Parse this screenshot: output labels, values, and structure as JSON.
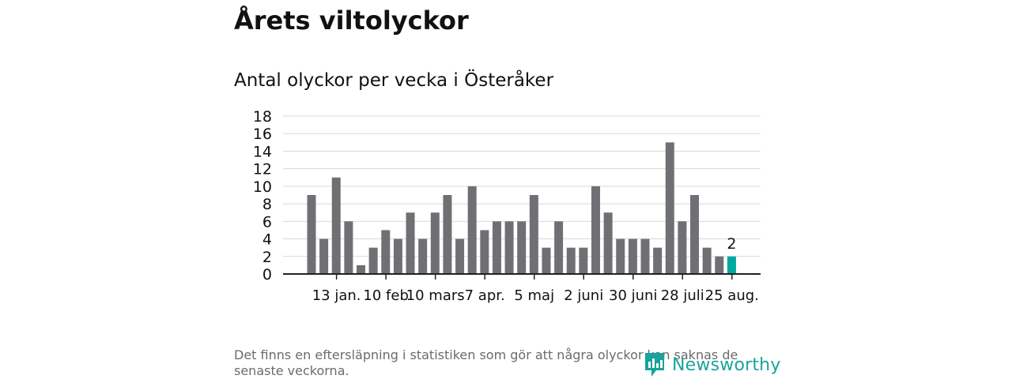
{
  "header": {
    "title": "Årets viltolyckor",
    "subtitle": "Antal olyckor per vecka i Österåker"
  },
  "footer": {
    "note": "Det finns en eftersläpning i statistiken som gör att några olyckor kan saknas de senaste veckorna.",
    "brand_name": "Newsworthy",
    "brand_color": "#1aa39a",
    "brand_icon": "newsworthy-logo-icon"
  },
  "chart_data": {
    "type": "bar",
    "title": "Antal olyckor per vecka i Österåker",
    "ylim": [
      0,
      18
    ],
    "yticks": [
      0,
      2,
      4,
      6,
      8,
      10,
      12,
      14,
      16,
      18
    ],
    "grid": true,
    "xticks": [
      {
        "label": "13 jan.",
        "week": 2
      },
      {
        "label": "10 feb",
        "week": 6
      },
      {
        "label": "10 mars",
        "week": 10
      },
      {
        "label": "7 apr.",
        "week": 14
      },
      {
        "label": "5 maj",
        "week": 18
      },
      {
        "label": "2 juni",
        "week": 22
      },
      {
        "label": "30 juni",
        "week": 26
      },
      {
        "label": "28 juli",
        "week": 30
      },
      {
        "label": "25 aug.",
        "week": 34
      }
    ],
    "weeks": [
      1,
      2,
      3,
      4,
      5,
      6,
      7,
      8,
      9,
      10,
      11,
      12,
      13,
      14,
      15,
      16,
      17,
      18,
      19,
      20,
      21,
      22,
      23,
      24,
      25,
      26,
      27,
      28,
      29,
      30,
      31,
      32,
      33,
      34,
      35
    ],
    "values": [
      9,
      4,
      11,
      6,
      1,
      3,
      5,
      4,
      7,
      4,
      7,
      9,
      4,
      10,
      5,
      6,
      6,
      6,
      9,
      3,
      6,
      3,
      3,
      10,
      7,
      4,
      4,
      4,
      3,
      15,
      6,
      9,
      3,
      2,
      2
    ],
    "bar_color": "#706f74",
    "highlight_color": "#00a99d",
    "highlight_index": 34,
    "highlight_label": "2"
  }
}
